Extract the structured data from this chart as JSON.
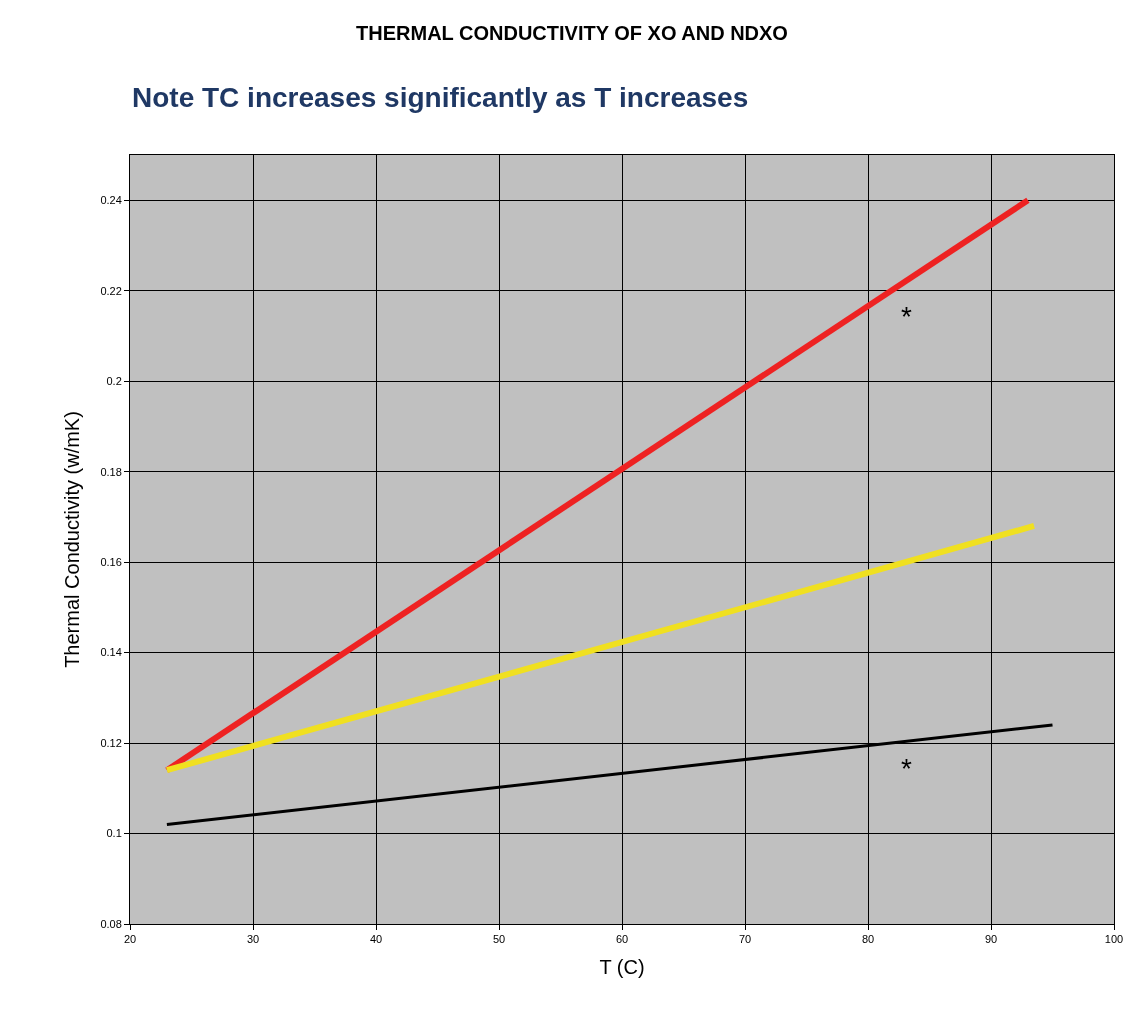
{
  "chart_data": {
    "type": "line",
    "title": "THERMAL CONDUCTIVITY OF XO AND NDXO",
    "subtitle": "Note TC increases significantly as T increases",
    "xlabel": "T (C)",
    "ylabel": "Thermal Conductivity (w/mK)",
    "series": [
      {
        "color": "#ee2222",
        "x": [
          23,
          93
        ],
        "values": [
          0.114,
          0.24
        ]
      },
      {
        "color": "#f0e020",
        "x": [
          23,
          93.5
        ],
        "values": [
          0.114,
          0.168
        ]
      },
      {
        "color": "#000000",
        "x": [
          23,
          95
        ],
        "values": [
          0.102,
          0.124
        ]
      }
    ],
    "annotations": [
      {
        "text": "*",
        "x": 82,
        "y": 0.22
      },
      {
        "text": "*",
        "x": 82,
        "y": 0.12
      }
    ],
    "xlim": [
      20,
      100
    ],
    "xticks": [
      20,
      30,
      40,
      50,
      60,
      70,
      80,
      90,
      100
    ],
    "ylim": [
      0.08,
      0.25
    ],
    "yticks": [
      0.08,
      0.1,
      0.12,
      0.14,
      0.16,
      0.18,
      0.2,
      0.22,
      0.24
    ],
    "grid": true,
    "marker": "none",
    "line_style": "solid"
  }
}
